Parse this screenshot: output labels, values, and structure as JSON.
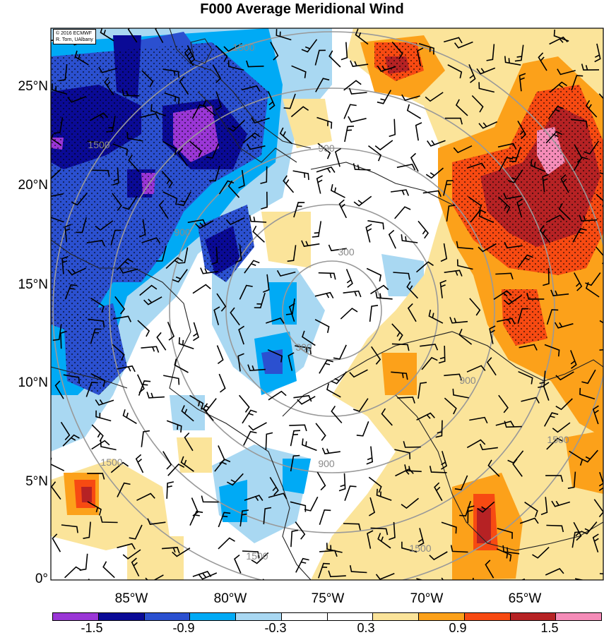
{
  "title": "F000 Average Meridional Wind",
  "credits": {
    "line1": "© 2016 ECMWF",
    "line2": "R. Torn, UAlbany"
  },
  "lat_labels": [
    "25°N",
    "20°N",
    "15°N",
    "10°N",
    "5°N",
    "0°"
  ],
  "lon_labels": [
    "85°W",
    "80°W",
    "75°W",
    "70°W",
    "65°W"
  ],
  "contour_labels": [
    "300",
    "300",
    "900",
    "900",
    "900",
    "900",
    "1500",
    "1500",
    "1500",
    "1500",
    "1500",
    "1500"
  ],
  "colorbar": {
    "colors": [
      "#9a36d6",
      "#0a0a96",
      "#2b50d0",
      "#00aaf5",
      "#a9d8f2",
      "#ffffff",
      "#ffffff",
      "#fbe49a",
      "#fca11a",
      "#f74a12",
      "#b62224",
      "#f58cb8"
    ],
    "labels": [
      "-1.5",
      "-0.9",
      "-0.3",
      "0.3",
      "0.9",
      "1.5"
    ]
  },
  "colors": {
    "purple": "#9a36d6",
    "navy": "#0a0a96",
    "blue": "#2b50d0",
    "cyan": "#00aaf5",
    "lightblue": "#a9d8f2",
    "yellow": "#fbe49a",
    "orange": "#fca11a",
    "redorange": "#f74a12",
    "darkred": "#b62224",
    "pink": "#f58cb8",
    "ring": "#999999"
  },
  "icons": {
    "stipple": "stipple-pattern",
    "barb": "wind-barb-icon"
  }
}
